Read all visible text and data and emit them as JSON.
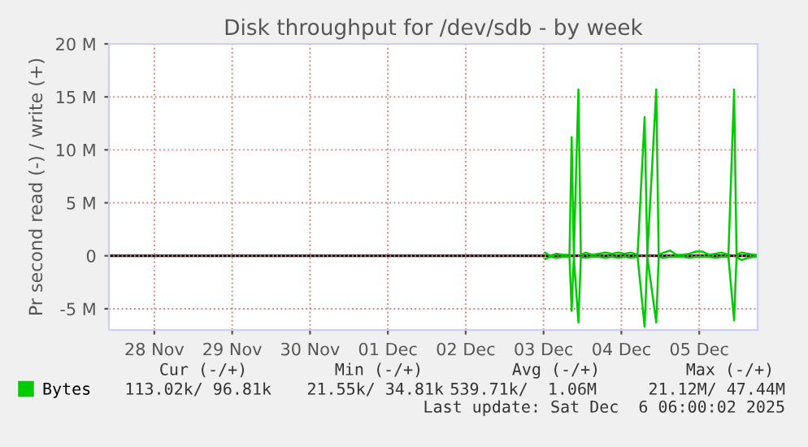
{
  "chart_data": {
    "type": "line",
    "title": "Disk throughput for /dev/sdb - by week",
    "ylabel": "Pr second read (-) / write (+)",
    "xlim": [
      "2025-11-27T22:00",
      "2025-12-06T06:00"
    ],
    "xticks": [
      {
        "value": "2025-11-28T12:00",
        "label": "28 Nov"
      },
      {
        "value": "2025-11-29T12:00",
        "label": "29 Nov"
      },
      {
        "value": "2025-11-30T12:00",
        "label": "30 Nov"
      },
      {
        "value": "2025-12-01T12:00",
        "label": "01 Dec"
      },
      {
        "value": "2025-12-02T12:00",
        "label": "02 Dec"
      },
      {
        "value": "2025-12-03T12:00",
        "label": "03 Dec"
      },
      {
        "value": "2025-12-04T12:00",
        "label": "04 Dec"
      },
      {
        "value": "2025-12-05T12:00",
        "label": "05 Dec"
      }
    ],
    "ylim": [
      -7,
      20
    ],
    "yticks": [
      {
        "value": -5,
        "label": "-5 M"
      },
      0,
      {
        "value": 5,
        "label": "5 M"
      },
      {
        "value": 10,
        "label": "10 M"
      },
      {
        "value": 15,
        "label": "15 M"
      },
      {
        "value": 20,
        "label": "20 M"
      }
    ],
    "grid": true,
    "legend": "bottom",
    "marker": "none",
    "line_style": "solid",
    "ref_lines": [
      {
        "axis": "y",
        "value": 0,
        "color": "#000000"
      }
    ],
    "series": [
      {
        "color": "#00cc00",
        "x": [
          "2025-12-03T12:30",
          "2025-12-03T14:00",
          "2025-12-03T16:00",
          "2025-12-03T18:00",
          "2025-12-03T20:00",
          "2025-12-03T20:40",
          "2025-12-03T21:20",
          "2025-12-03T22:45",
          "2025-12-03T23:30",
          "2025-12-04T01:00",
          "2025-12-04T03:00",
          "2025-12-04T05:00",
          "2025-12-04T07:00",
          "2025-12-04T09:00",
          "2025-12-04T11:00",
          "2025-12-04T13:00",
          "2025-12-04T15:00",
          "2025-12-04T17:00",
          "2025-12-04T19:10",
          "2025-12-04T20:00",
          "2025-12-04T22:45",
          "2025-12-04T23:30",
          "2025-12-05T01:00",
          "2025-12-05T03:00",
          "2025-12-05T05:00",
          "2025-12-05T07:00",
          "2025-12-05T09:00",
          "2025-12-05T11:00",
          "2025-12-05T13:00",
          "2025-12-05T15:00",
          "2025-12-05T17:00",
          "2025-12-05T19:00",
          "2025-12-05T21:00",
          "2025-12-05T22:45",
          "2025-12-05T23:30",
          "2025-12-06T01:00",
          "2025-12-06T03:00",
          "2025-12-06T05:00",
          "2025-12-06T06:00"
        ],
        "values": [
          -0.3,
          -0.1,
          -0.2,
          -0.1,
          -0.1,
          -5.2,
          -0.1,
          -6.3,
          -0.1,
          -0.2,
          -0.1,
          -0.1,
          -0.2,
          -0.1,
          -0.2,
          -0.1,
          -0.2,
          -0.1,
          -6.7,
          -0.1,
          -6.3,
          -0.1,
          -0.2,
          -0.1,
          -0.1,
          -0.1,
          -0.2,
          -0.1,
          -0.1,
          -0.1,
          -0.2,
          -0.1,
          -0.1,
          -6.1,
          -0.1,
          -0.4,
          -0.2,
          -0.1,
          -0.1
        ]
      },
      {
        "name": "Bytes",
        "color": "#00cc00",
        "x": [
          "2025-12-03T12:30",
          "2025-12-03T14:00",
          "2025-12-03T16:00",
          "2025-12-03T18:00",
          "2025-12-03T20:00",
          "2025-12-03T20:40",
          "2025-12-03T21:20",
          "2025-12-03T22:45",
          "2025-12-03T23:30",
          "2025-12-04T01:00",
          "2025-12-04T03:00",
          "2025-12-04T05:00",
          "2025-12-04T07:00",
          "2025-12-04T09:00",
          "2025-12-04T11:00",
          "2025-12-04T13:00",
          "2025-12-04T15:00",
          "2025-12-04T17:00",
          "2025-12-04T19:10",
          "2025-12-04T20:00",
          "2025-12-04T22:45",
          "2025-12-04T23:30",
          "2025-12-05T01:00",
          "2025-12-05T03:00",
          "2025-12-05T05:00",
          "2025-12-05T07:00",
          "2025-12-05T09:00",
          "2025-12-05T11:00",
          "2025-12-05T13:00",
          "2025-12-05T15:00",
          "2025-12-05T17:00",
          "2025-12-05T19:00",
          "2025-12-05T21:00",
          "2025-12-05T22:45",
          "2025-12-05T23:30",
          "2025-12-06T01:00",
          "2025-12-06T03:00",
          "2025-12-06T05:00",
          "2025-12-06T06:00"
        ],
        "values": [
          0.3,
          0.0,
          0.2,
          0.1,
          0.1,
          11.2,
          0.1,
          15.7,
          0.1,
          0.3,
          0.1,
          0.2,
          0.3,
          0.2,
          0.3,
          0.2,
          0.3,
          0.1,
          13.1,
          0.1,
          15.7,
          0.1,
          0.3,
          0.5,
          0.1,
          0.1,
          0.2,
          0.4,
          0.4,
          0.1,
          0.2,
          0.3,
          0.1,
          15.7,
          0.1,
          0.3,
          0.2,
          0.1,
          0.1
        ]
      }
    ],
    "annotations": [
      "Cur (-/+)",
      "Min (-/+)",
      "Avg (-/+)",
      "Max (-/+)",
      "113.02k/ 96.81k",
      "21.55k/ 34.81k",
      "539.71k/  1.06M",
      "21.12M/ 47.44M",
      "Last update: Sat Dec  6 06:00:02 2025"
    ]
  }
}
